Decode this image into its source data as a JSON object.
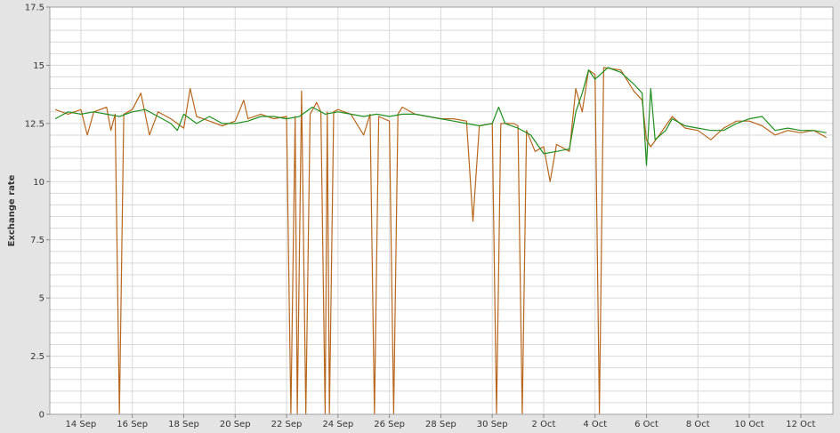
{
  "chart_data": {
    "type": "line",
    "xlabel": "",
    "ylabel": "Exchange rate",
    "x_tick_labels": [
      "14 Sep",
      "16 Sep",
      "18 Sep",
      "20 Sep",
      "22 Sep",
      "24 Sep",
      "26 Sep",
      "28 Sep",
      "30 Sep",
      "2 Oct",
      "4 Oct",
      "6 Oct",
      "8 Oct",
      "10 Oct",
      "12 Oct"
    ],
    "y_tick_labels": [
      "0",
      "2.5",
      "5",
      "7.5",
      "10",
      "12.5",
      "15",
      "17.5"
    ],
    "ylim": [
      0,
      17.5
    ],
    "xlim": [
      "2024-09-12T19:00",
      "2024-10-13T06:00"
    ],
    "grid": true,
    "legend": "none",
    "colors": {
      "series_green": "#1f8f1f",
      "series_brown": "#b8661c",
      "plot_background": "#ffffff",
      "gridline": "#d9d9d9"
    },
    "series": [
      {
        "color": "#1f8f1f",
        "points": [
          [
            "2024-09-13T00:00",
            12.7
          ],
          [
            "2024-09-13T12:00",
            13.0
          ],
          [
            "2024-09-14T00:00",
            12.9
          ],
          [
            "2024-09-14T12:00",
            13.0
          ],
          [
            "2024-09-15T00:00",
            12.9
          ],
          [
            "2024-09-15T12:00",
            12.8
          ],
          [
            "2024-09-16T00:00",
            13.0
          ],
          [
            "2024-09-16T12:00",
            13.1
          ],
          [
            "2024-09-17T00:00",
            12.8
          ],
          [
            "2024-09-17T12:00",
            12.5
          ],
          [
            "2024-09-17T18:00",
            12.2
          ],
          [
            "2024-09-18T00:00",
            12.9
          ],
          [
            "2024-09-18T12:00",
            12.5
          ],
          [
            "2024-09-19T00:00",
            12.8
          ],
          [
            "2024-09-19T12:00",
            12.5
          ],
          [
            "2024-09-20T00:00",
            12.5
          ],
          [
            "2024-09-20T12:00",
            12.6
          ],
          [
            "2024-09-21T00:00",
            12.8
          ],
          [
            "2024-09-21T12:00",
            12.8
          ],
          [
            "2024-09-22T00:00",
            12.7
          ],
          [
            "2024-09-22T12:00",
            12.8
          ],
          [
            "2024-09-23T00:00",
            13.2
          ],
          [
            "2024-09-23T12:00",
            12.9
          ],
          [
            "2024-09-24T00:00",
            13.0
          ],
          [
            "2024-09-24T12:00",
            12.9
          ],
          [
            "2024-09-25T00:00",
            12.8
          ],
          [
            "2024-09-25T12:00",
            12.9
          ],
          [
            "2024-09-26T00:00",
            12.8
          ],
          [
            "2024-09-26T12:00",
            12.9
          ],
          [
            "2024-09-27T00:00",
            12.9
          ],
          [
            "2024-09-27T12:00",
            12.8
          ],
          [
            "2024-09-28T00:00",
            12.7
          ],
          [
            "2024-09-28T12:00",
            12.6
          ],
          [
            "2024-09-29T00:00",
            12.5
          ],
          [
            "2024-09-29T12:00",
            12.4
          ],
          [
            "2024-09-30T00:00",
            12.5
          ],
          [
            "2024-09-30T06:00",
            13.2
          ],
          [
            "2024-09-30T12:00",
            12.5
          ],
          [
            "2024-10-01T00:00",
            12.3
          ],
          [
            "2024-10-01T12:00",
            12.0
          ],
          [
            "2024-10-02T00:00",
            11.2
          ],
          [
            "2024-10-02T12:00",
            11.3
          ],
          [
            "2024-10-03T00:00",
            11.4
          ],
          [
            "2024-10-03T06:00",
            13.0
          ],
          [
            "2024-10-03T12:00",
            13.8
          ],
          [
            "2024-10-03T18:00",
            14.8
          ],
          [
            "2024-10-04T00:00",
            14.4
          ],
          [
            "2024-10-04T12:00",
            14.9
          ],
          [
            "2024-10-05T00:00",
            14.7
          ],
          [
            "2024-10-05T12:00",
            14.2
          ],
          [
            "2024-10-05T20:00",
            13.8
          ],
          [
            "2024-10-06T00:00",
            10.7
          ],
          [
            "2024-10-06T04:00",
            14.0
          ],
          [
            "2024-10-06T08:00",
            11.8
          ],
          [
            "2024-10-06T18:00",
            12.2
          ],
          [
            "2024-10-07T00:00",
            12.7
          ],
          [
            "2024-10-07T12:00",
            12.4
          ],
          [
            "2024-10-08T00:00",
            12.3
          ],
          [
            "2024-10-08T12:00",
            12.2
          ],
          [
            "2024-10-09T00:00",
            12.2
          ],
          [
            "2024-10-09T12:00",
            12.5
          ],
          [
            "2024-10-10T00:00",
            12.7
          ],
          [
            "2024-10-10T12:00",
            12.8
          ],
          [
            "2024-10-11T00:00",
            12.2
          ],
          [
            "2024-10-11T12:00",
            12.3
          ],
          [
            "2024-10-12T00:00",
            12.2
          ],
          [
            "2024-10-12T12:00",
            12.2
          ],
          [
            "2024-10-13T00:00",
            12.1
          ]
        ]
      },
      {
        "color": "#b8661c",
        "points": [
          [
            "2024-09-13T00:00",
            13.1
          ],
          [
            "2024-09-13T12:00",
            12.9
          ],
          [
            "2024-09-14T00:00",
            13.1
          ],
          [
            "2024-09-14T06:00",
            12.0
          ],
          [
            "2024-09-14T12:00",
            13.0
          ],
          [
            "2024-09-15T00:00",
            13.2
          ],
          [
            "2024-09-15T04:00",
            12.2
          ],
          [
            "2024-09-15T08:00",
            12.9
          ],
          [
            "2024-09-15T12:00",
            0
          ],
          [
            "2024-09-15T16:00",
            12.9
          ],
          [
            "2024-09-16T00:00",
            13.1
          ],
          [
            "2024-09-16T08:00",
            13.8
          ],
          [
            "2024-09-16T16:00",
            12.0
          ],
          [
            "2024-09-17T00:00",
            13.0
          ],
          [
            "2024-09-17T12:00",
            12.7
          ],
          [
            "2024-09-18T00:00",
            12.3
          ],
          [
            "2024-09-18T06:00",
            14.0
          ],
          [
            "2024-09-18T12:00",
            12.8
          ],
          [
            "2024-09-19T00:00",
            12.6
          ],
          [
            "2024-09-19T12:00",
            12.4
          ],
          [
            "2024-09-20T00:00",
            12.6
          ],
          [
            "2024-09-20T08:00",
            13.5
          ],
          [
            "2024-09-20T12:00",
            12.7
          ],
          [
            "2024-09-21T00:00",
            12.9
          ],
          [
            "2024-09-21T12:00",
            12.7
          ],
          [
            "2024-09-22T00:00",
            12.8
          ],
          [
            "2024-09-22T04:00",
            0
          ],
          [
            "2024-09-22T08:00",
            12.8
          ],
          [
            "2024-09-22T10:00",
            0
          ],
          [
            "2024-09-22T14:00",
            13.9
          ],
          [
            "2024-09-22T18:00",
            0
          ],
          [
            "2024-09-22T22:00",
            12.9
          ],
          [
            "2024-09-23T04:00",
            13.4
          ],
          [
            "2024-09-23T08:00",
            13.0
          ],
          [
            "2024-09-23T12:00",
            0
          ],
          [
            "2024-09-23T14:00",
            13.0
          ],
          [
            "2024-09-23T16:00",
            0
          ],
          [
            "2024-09-23T20:00",
            13.0
          ],
          [
            "2024-09-24T00:00",
            13.1
          ],
          [
            "2024-09-24T12:00",
            12.9
          ],
          [
            "2024-09-25T00:00",
            12.0
          ],
          [
            "2024-09-25T06:00",
            12.9
          ],
          [
            "2024-09-25T10:00",
            0
          ],
          [
            "2024-09-25T14:00",
            12.8
          ],
          [
            "2024-09-26T00:00",
            12.6
          ],
          [
            "2024-09-26T04:00",
            0
          ],
          [
            "2024-09-26T08:00",
            12.9
          ],
          [
            "2024-09-26T12:00",
            13.2
          ],
          [
            "2024-09-27T00:00",
            12.9
          ],
          [
            "2024-09-27T12:00",
            12.8
          ],
          [
            "2024-09-28T00:00",
            12.7
          ],
          [
            "2024-09-28T12:00",
            12.7
          ],
          [
            "2024-09-29T00:00",
            12.6
          ],
          [
            "2024-09-29T06:00",
            8.3
          ],
          [
            "2024-09-29T12:00",
            12.4
          ],
          [
            "2024-09-30T00:00",
            12.5
          ],
          [
            "2024-09-30T04:00",
            0
          ],
          [
            "2024-09-30T08:00",
            12.5
          ],
          [
            "2024-09-30T20:00",
            12.5
          ],
          [
            "2024-10-01T00:00",
            12.4
          ],
          [
            "2024-10-01T04:00",
            0
          ],
          [
            "2024-10-01T08:00",
            12.2
          ],
          [
            "2024-10-01T16:00",
            11.3
          ],
          [
            "2024-10-02T00:00",
            11.5
          ],
          [
            "2024-10-02T06:00",
            10.0
          ],
          [
            "2024-10-02T12:00",
            11.6
          ],
          [
            "2024-10-03T00:00",
            11.3
          ],
          [
            "2024-10-03T06:00",
            14.0
          ],
          [
            "2024-10-03T12:00",
            13.0
          ],
          [
            "2024-10-03T18:00",
            14.8
          ],
          [
            "2024-10-04T00:00",
            14.6
          ],
          [
            "2024-10-04T04:00",
            0
          ],
          [
            "2024-10-04T08:00",
            14.9
          ],
          [
            "2024-10-05T00:00",
            14.8
          ],
          [
            "2024-10-05T12:00",
            13.9
          ],
          [
            "2024-10-05T20:00",
            13.5
          ],
          [
            "2024-10-06T00:00",
            11.8
          ],
          [
            "2024-10-06T04:00",
            11.5
          ],
          [
            "2024-10-06T12:00",
            12.0
          ],
          [
            "2024-10-07T00:00",
            12.8
          ],
          [
            "2024-10-07T12:00",
            12.3
          ],
          [
            "2024-10-08T00:00",
            12.2
          ],
          [
            "2024-10-08T12:00",
            11.8
          ],
          [
            "2024-10-09T00:00",
            12.3
          ],
          [
            "2024-10-09T12:00",
            12.6
          ],
          [
            "2024-10-10T00:00",
            12.6
          ],
          [
            "2024-10-10T12:00",
            12.4
          ],
          [
            "2024-10-11T00:00",
            12.0
          ],
          [
            "2024-10-11T12:00",
            12.2
          ],
          [
            "2024-10-12T00:00",
            12.1
          ],
          [
            "2024-10-12T12:00",
            12.2
          ],
          [
            "2024-10-13T00:00",
            11.9
          ]
        ]
      }
    ]
  }
}
